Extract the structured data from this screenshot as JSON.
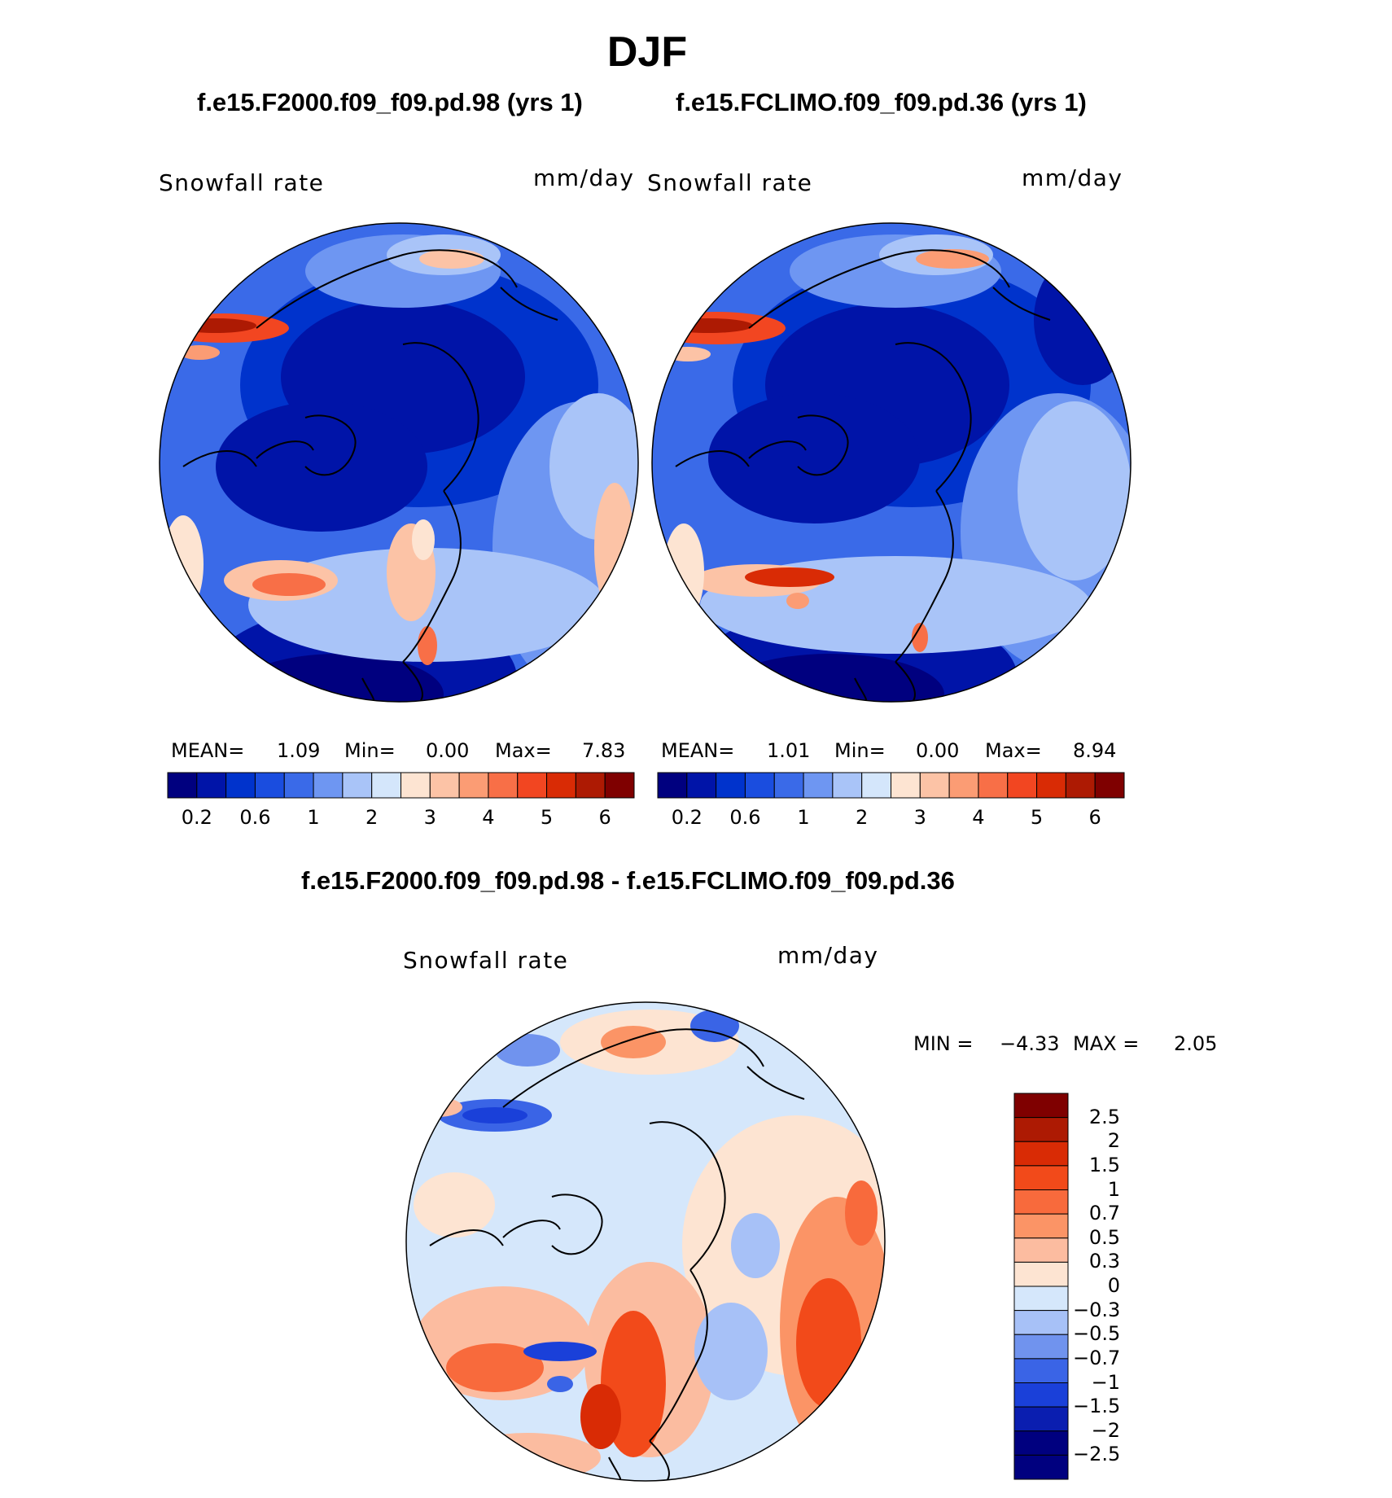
{
  "page": {
    "season": "DJF",
    "case1_title": "f.e15.F2000.f09_f09.pd.98 (yrs 1)",
    "case2_title": "f.e15.FCLIMO.f09_f09.pd.36 (yrs 1)",
    "diff_title": "f.e15.F2000.f09_f09.pd.98 - f.e15.FCLIMO.f09_f09.pd.36"
  },
  "panels": [
    {
      "id": "case1",
      "variable": "Snowfall rate",
      "units": "mm/day",
      "mean_label": "MEAN=",
      "mean": "1.09",
      "min_label": "Min=",
      "min": "0.00",
      "max_label": "Max=",
      "max": "7.83"
    },
    {
      "id": "case2",
      "variable": "Snowfall rate",
      "units": "mm/day",
      "mean_label": "MEAN=",
      "mean": "1.01",
      "min_label": "Min=",
      "min": "0.00",
      "max_label": "Max=",
      "max": "8.94"
    },
    {
      "id": "diff",
      "variable": "Snowfall rate",
      "units": "mm/day",
      "min_label": "MIN =",
      "min": "−4.33",
      "max_label": "MAX =",
      "max": "2.05"
    }
  ],
  "colorbars": {
    "abs": {
      "colors": [
        "#00007f",
        "#0014a8",
        "#0033cc",
        "#1a4ddf",
        "#3a6ae8",
        "#6e96f2",
        "#a9c4f8",
        "#d4e6fb",
        "#fde4d2",
        "#fcc3a6",
        "#fb9c74",
        "#f86f47",
        "#f24621",
        "#d92b05",
        "#ad1a03",
        "#7f0000"
      ],
      "ticks": [
        "0.2",
        "0.6",
        "1",
        "2",
        "3",
        "4",
        "5",
        "6"
      ]
    },
    "diff": {
      "colors": [
        "#00007f",
        "#0a1eb0",
        "#1a40d9",
        "#3a64e6",
        "#7093ee",
        "#a7c1f7",
        "#d5e7fb",
        "#fde4d2",
        "#fcbca0",
        "#fb9466",
        "#f86a3c",
        "#f24a1a",
        "#d92b05",
        "#ad1a03",
        "#7f0000"
      ],
      "ticks": [
        "2.5",
        "2",
        "1.5",
        "1",
        "0.7",
        "0.5",
        "0.3",
        "0",
        "−0.3",
        "−0.5",
        "−0.7",
        "−1",
        "−1.5",
        "−2",
        "−2.5"
      ]
    }
  }
}
